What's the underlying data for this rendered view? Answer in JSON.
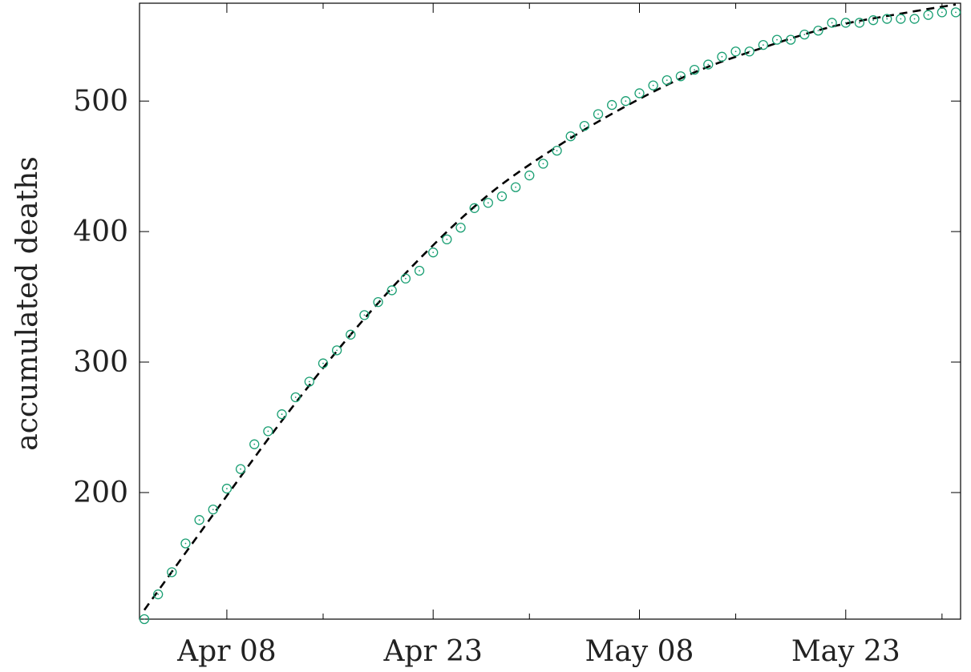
{
  "chart_data": {
    "type": "scatter",
    "title": "",
    "xlabel": "",
    "ylabel": "accumulated deaths",
    "x_axis": {
      "type": "date",
      "min": "2020-04-02",
      "max": "2020-05-31",
      "tick_labels": [
        "Apr 08",
        "Apr 23",
        "May 08",
        "May 23"
      ],
      "ticks": [
        "2020-04-08",
        "2020-04-23",
        "2020-05-08",
        "2020-05-23"
      ],
      "minor_ticks": [
        "2020-04-15",
        "2020-04-30",
        "2020-05-15",
        "2020-05-30"
      ]
    },
    "y_axis": {
      "min": 103,
      "max": 575,
      "ticks": [
        200,
        300,
        400,
        500
      ],
      "tick_labels": [
        "200",
        "300",
        "400",
        "500"
      ]
    },
    "grid": false,
    "legend": "none",
    "series": [
      {
        "kind": "points",
        "marker": "circle-dot",
        "color": "#1a9f73",
        "x": [
          "2020-04-02",
          "2020-04-03",
          "2020-04-04",
          "2020-04-05",
          "2020-04-06",
          "2020-04-07",
          "2020-04-08",
          "2020-04-09",
          "2020-04-10",
          "2020-04-11",
          "2020-04-12",
          "2020-04-13",
          "2020-04-14",
          "2020-04-15",
          "2020-04-16",
          "2020-04-17",
          "2020-04-18",
          "2020-04-19",
          "2020-04-20",
          "2020-04-21",
          "2020-04-22",
          "2020-04-23",
          "2020-04-24",
          "2020-04-25",
          "2020-04-26",
          "2020-04-27",
          "2020-04-28",
          "2020-04-29",
          "2020-04-30",
          "2020-05-01",
          "2020-05-02",
          "2020-05-03",
          "2020-05-04",
          "2020-05-05",
          "2020-05-06",
          "2020-05-07",
          "2020-05-08",
          "2020-05-09",
          "2020-05-10",
          "2020-05-11",
          "2020-05-12",
          "2020-05-13",
          "2020-05-14",
          "2020-05-15",
          "2020-05-16",
          "2020-05-17",
          "2020-05-18",
          "2020-05-19",
          "2020-05-20",
          "2020-05-21",
          "2020-05-22",
          "2020-05-23",
          "2020-05-24",
          "2020-05-25",
          "2020-05-26",
          "2020-05-27",
          "2020-05-28",
          "2020-05-29",
          "2020-05-30",
          "2020-05-31"
        ],
        "y": [
          103,
          122,
          139,
          161,
          179,
          187,
          203,
          218,
          237,
          247,
          260,
          273,
          285,
          299,
          309,
          321,
          336,
          346,
          355,
          364,
          370,
          384,
          394,
          403,
          418,
          422,
          427,
          434,
          443,
          452,
          462,
          473,
          481,
          490,
          497,
          500,
          506,
          512,
          516,
          519,
          524,
          528,
          534,
          538,
          538,
          543,
          547,
          547,
          551,
          554,
          560,
          560,
          560,
          562,
          563,
          563,
          563,
          566,
          568,
          568
        ]
      },
      {
        "kind": "fit-line",
        "style": "dashed",
        "color": "#000000",
        "x": [
          "2020-04-02",
          "2020-04-07",
          "2020-04-12",
          "2020-04-17",
          "2020-04-22",
          "2020-04-27",
          "2020-05-02",
          "2020-05-07",
          "2020-05-12",
          "2020-05-17",
          "2020-05-22",
          "2020-05-27",
          "2020-05-31"
        ],
        "y": [
          110,
          183,
          255,
          321,
          379,
          428,
          465,
          496,
          522,
          541,
          557,
          567,
          574
        ]
      }
    ]
  }
}
